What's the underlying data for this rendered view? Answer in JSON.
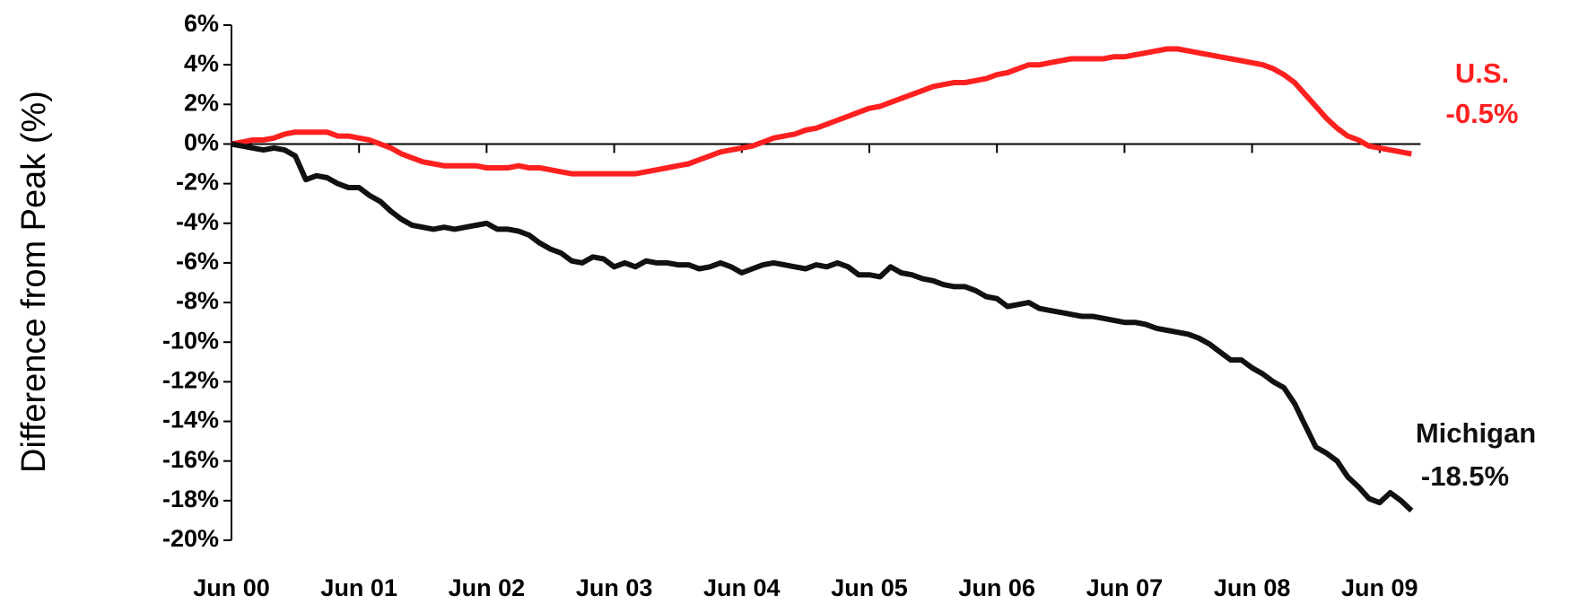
{
  "chart_data": {
    "type": "line",
    "y_label": "Difference from Peak (%)",
    "categories": [
      "Jun 00",
      null,
      null,
      null,
      null,
      null,
      null,
      null,
      null,
      null,
      null,
      null,
      "Jun 01",
      null,
      null,
      null,
      null,
      null,
      null,
      null,
      null,
      null,
      null,
      null,
      "Jun 02",
      null,
      null,
      null,
      null,
      null,
      null,
      null,
      null,
      null,
      null,
      null,
      "Jun 03",
      null,
      null,
      null,
      null,
      null,
      null,
      null,
      null,
      null,
      null,
      null,
      "Jun 04",
      null,
      null,
      null,
      null,
      null,
      null,
      null,
      null,
      null,
      null,
      null,
      "Jun 05",
      null,
      null,
      null,
      null,
      null,
      null,
      null,
      null,
      null,
      null,
      null,
      "Jun 06",
      null,
      null,
      null,
      null,
      null,
      null,
      null,
      null,
      null,
      null,
      null,
      "Jun 07",
      null,
      null,
      null,
      null,
      null,
      null,
      null,
      null,
      null,
      null,
      null,
      "Jun 08",
      null,
      null,
      null,
      null,
      null,
      null,
      null,
      null,
      null,
      null,
      null,
      "Jun 09",
      null,
      null,
      null
    ],
    "series": [
      {
        "name": "U.S.",
        "end_label": "-0.5%",
        "color": "#ff2020",
        "values": [
          0,
          0.1,
          0.2,
          0.2,
          0.3,
          0.5,
          0.6,
          0.6,
          0.6,
          0.6,
          0.4,
          0.4,
          0.3,
          0.2,
          0,
          -0.2,
          -0.5,
          -0.7,
          -0.9,
          -1,
          -1.1,
          -1.1,
          -1.1,
          -1.1,
          -1.2,
          -1.2,
          -1.2,
          -1.1,
          -1.2,
          -1.2,
          -1.3,
          -1.4,
          -1.5,
          -1.5,
          -1.5,
          -1.5,
          -1.5,
          -1.5,
          -1.5,
          -1.4,
          -1.3,
          -1.2,
          -1.1,
          -1,
          -0.8,
          -0.6,
          -0.4,
          -0.3,
          -0.2,
          -0.1,
          0.1,
          0.3,
          0.4,
          0.5,
          0.7,
          0.8,
          1,
          1.2,
          1.4,
          1.6,
          1.8,
          1.9,
          2.1,
          2.3,
          2.5,
          2.7,
          2.9,
          3,
          3.1,
          3.1,
          3.2,
          3.3,
          3.5,
          3.6,
          3.8,
          4,
          4,
          4.1,
          4.2,
          4.3,
          4.3,
          4.3,
          4.3,
          4.4,
          4.4,
          4.5,
          4.6,
          4.7,
          4.8,
          4.8,
          4.7,
          4.6,
          4.5,
          4.4,
          4.3,
          4.2,
          4.1,
          4,
          3.8,
          3.5,
          3.1,
          2.5,
          1.9,
          1.3,
          0.8,
          0.4,
          0.2,
          -0.1,
          -0.2,
          -0.3,
          -0.4,
          -0.5
        ]
      },
      {
        "name": "Michigan",
        "end_label": "-18.5%",
        "color": "#111111",
        "values": [
          0,
          -0.1,
          -0.2,
          -0.3,
          -0.2,
          -0.3,
          -0.6,
          -1.8,
          -1.6,
          -1.7,
          -2,
          -2.2,
          -2.2,
          -2.6,
          -2.9,
          -3.4,
          -3.8,
          -4.1,
          -4.2,
          -4.3,
          -4.2,
          -4.3,
          -4.2,
          -4.1,
          -4,
          -4.3,
          -4.3,
          -4.4,
          -4.6,
          -5,
          -5.3,
          -5.5,
          -5.9,
          -6,
          -5.7,
          -5.8,
          -6.2,
          -6,
          -6.2,
          -5.9,
          -6,
          -6,
          -6.1,
          -6.1,
          -6.3,
          -6.2,
          -6,
          -6.2,
          -6.5,
          -6.3,
          -6.1,
          -6,
          -6.1,
          -6.2,
          -6.3,
          -6.1,
          -6.2,
          -6,
          -6.2,
          -6.6,
          -6.6,
          -6.7,
          -6.2,
          -6.5,
          -6.6,
          -6.8,
          -6.9,
          -7.1,
          -7.2,
          -7.2,
          -7.4,
          -7.7,
          -7.8,
          -8.2,
          -8.1,
          -8,
          -8.3,
          -8.4,
          -8.5,
          -8.6,
          -8.7,
          -8.7,
          -8.8,
          -8.9,
          -9,
          -9,
          -9.1,
          -9.3,
          -9.4,
          -9.5,
          -9.6,
          -9.8,
          -10.1,
          -10.5,
          -10.9,
          -10.9,
          -11.3,
          -11.6,
          -12,
          -12.3,
          -13.1,
          -14.2,
          -15.3,
          -15.6,
          -16,
          -16.8,
          -17.3,
          -17.9,
          -18.1,
          -17.6,
          -18,
          -18.5
        ]
      }
    ],
    "ylim": [
      -20,
      6
    ],
    "yticks": [
      {
        "value": -20,
        "label": "-20%"
      },
      {
        "value": -18,
        "label": "-18%"
      },
      {
        "value": -16,
        "label": "-16%"
      },
      {
        "value": -14,
        "label": "-14%"
      },
      {
        "value": -12,
        "label": "-12%"
      },
      {
        "value": -10,
        "label": "-10%"
      },
      {
        "value": -8,
        "label": "-8%"
      },
      {
        "value": -6,
        "label": "-6%"
      },
      {
        "value": -4,
        "label": "-4%"
      },
      {
        "value": -2,
        "label": "-2%"
      },
      {
        "value": 0,
        "label": "0%"
      },
      {
        "value": 2,
        "label": "2%"
      },
      {
        "value": 4,
        "label": "4%"
      },
      {
        "value": 6,
        "label": "6%"
      }
    ],
    "grid": false
  }
}
